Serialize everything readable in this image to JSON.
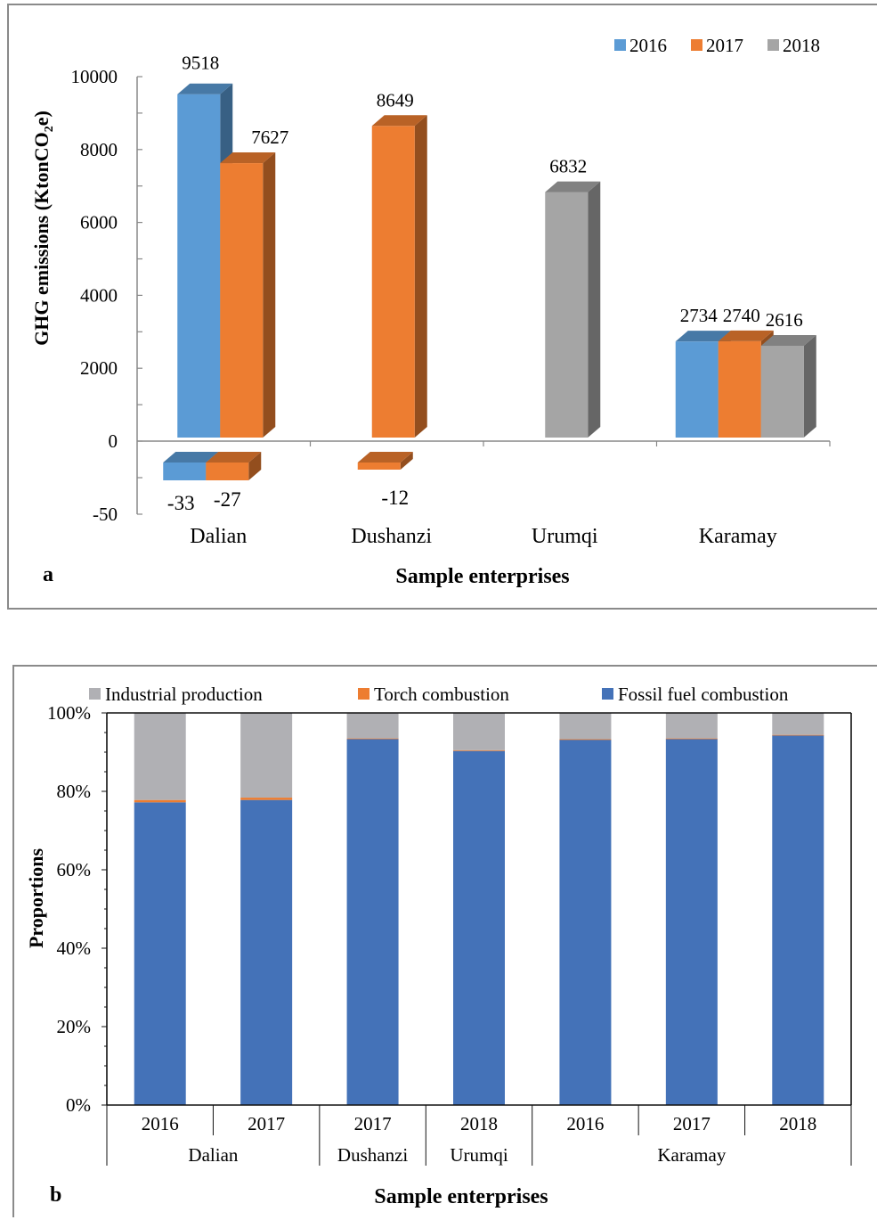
{
  "chart_data": [
    {
      "type": "bar",
      "panel_label": "a",
      "title": "",
      "xlabel": "Sample enterprises",
      "ylabel_main": "GHG emissions  (KtonCO",
      "ylabel_sub": "2",
      "ylabel_end": "e)",
      "categories": [
        "Dalian",
        "Dushanzi",
        "Urumqi",
        "Karamay"
      ],
      "series": [
        {
          "name": "2016",
          "color": "#5b9bd5",
          "values": [
            9518,
            null,
            null,
            2734
          ],
          "negative": [
            -33,
            null,
            null,
            null
          ]
        },
        {
          "name": "2017",
          "color": "#ed7d31",
          "values": [
            7627,
            8649,
            null,
            2740
          ],
          "negative": [
            -27,
            -12,
            null,
            null
          ]
        },
        {
          "name": "2018",
          "color": "#a5a5a5",
          "values": [
            null,
            null,
            6832,
            2616
          ],
          "negative": [
            null,
            null,
            null,
            null
          ]
        }
      ],
      "y_ticks_upper": [
        "10000",
        "8000",
        "6000",
        "4000",
        "2000",
        "0"
      ],
      "y_ticks_lower": [
        "-50"
      ],
      "ylim_upper": [
        0,
        10000
      ],
      "ylim_lower": [
        -50,
        0
      ],
      "legend_position": "top-right"
    },
    {
      "type": "bar",
      "stacked": true,
      "panel_label": "b",
      "title": "",
      "xlabel": "Sample enterprises",
      "ylabel": "Proportions",
      "categories": [
        "2016",
        "2017",
        "2017",
        "2018",
        "2016",
        "2017",
        "2018"
      ],
      "groups": [
        {
          "label": "Dalian",
          "span": 2
        },
        {
          "label": "Dushanzi",
          "span": 1
        },
        {
          "label": "Urumqi",
          "span": 1
        },
        {
          "label": "Karamay",
          "span": 3
        }
      ],
      "series": [
        {
          "name": "Fossil fuel combustion",
          "color": "#4472b8",
          "values": [
            77.2,
            77.8,
            93.4,
            90.3,
            93.2,
            93.4,
            94.3
          ]
        },
        {
          "name": "Torch combustion",
          "color": "#ed7d31",
          "values": [
            0.6,
            0.6,
            0.1,
            0.2,
            0.1,
            0.1,
            0.1
          ]
        },
        {
          "name": "Industrial production",
          "color": "#b0b0b4",
          "values": [
            22.2,
            21.6,
            6.5,
            9.5,
            6.7,
            6.5,
            5.6
          ]
        }
      ],
      "legend_order": [
        "Industrial production",
        "Torch combustion",
        "Fossil fuel combustion"
      ],
      "y_ticks": [
        "0%",
        "20%",
        "40%",
        "60%",
        "80%",
        "100%"
      ],
      "ylim": [
        0,
        100
      ],
      "legend_position": "top"
    }
  ]
}
